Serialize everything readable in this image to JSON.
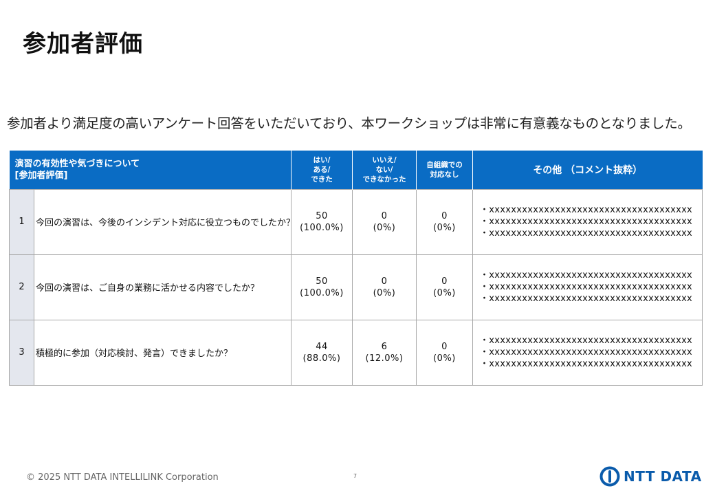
{
  "title": "参加者評価",
  "lead": "参加者より満足度の高いアンケート回答をいただいており、本ワークショップは非常に有意義なものとなりました。",
  "table": {
    "headers": {
      "main_line1": "演習の有効性や気づきについて",
      "main_line2": "[参加者評価]",
      "yes_line1": "はい/",
      "yes_line2": "ある/",
      "yes_line3": "できた",
      "no_line1": "いいえ/",
      "no_line2": "ない/",
      "no_line3": "できなかった",
      "na_line1": "自組織での",
      "na_line2": "対応なし",
      "other": "その他 （コメント抜粋）"
    },
    "rows": [
      {
        "no": "1",
        "question": "今回の演習は、今後のインシデント対応に役立つものでしたか？",
        "yes_count": "50",
        "yes_pct": "(100.0%)",
        "no_count": "0",
        "no_pct": "(0%)",
        "na_count": "0",
        "na_pct": "(0%)",
        "comments": [
          "・xxxxxxxxxxxxxxxxxxxxxxxxxxxxxxxxxxxxx",
          "・xxxxxxxxxxxxxxxxxxxxxxxxxxxxxxxxxxxxx",
          "・xxxxxxxxxxxxxxxxxxxxxxxxxxxxxxxxxxxxx"
        ]
      },
      {
        "no": "2",
        "question": "今回の演習は、ご自身の業務に活かせる内容でしたか？",
        "yes_count": "50",
        "yes_pct": "(100.0%)",
        "no_count": "0",
        "no_pct": "(0%)",
        "na_count": "0",
        "na_pct": "(0%)",
        "comments": [
          "・xxxxxxxxxxxxxxxxxxxxxxxxxxxxxxxxxxxxx",
          "・xxxxxxxxxxxxxxxxxxxxxxxxxxxxxxxxxxxxx",
          "・xxxxxxxxxxxxxxxxxxxxxxxxxxxxxxxxxxxxx"
        ]
      },
      {
        "no": "3",
        "question": "積極的に参加（対応検討、発言）できましたか？",
        "yes_count": "44",
        "yes_pct": "(88.0%)",
        "no_count": "6",
        "no_pct": "(12.0%)",
        "na_count": "0",
        "na_pct": "(0%)",
        "comments": [
          "・xxxxxxxxxxxxxxxxxxxxxxxxxxxxxxxxxxxxx",
          "・xxxxxxxxxxxxxxxxxxxxxxxxxxxxxxxxxxxxx",
          "・xxxxxxxxxxxxxxxxxxxxxxxxxxxxxxxxxxxxx"
        ]
      }
    ]
  },
  "footer": {
    "copyright": "© 2025 NTT DATA INTELLILINK Corporation",
    "page": "7",
    "logo_text": "NTT DATA",
    "brand_color": "#0a5bab"
  },
  "colors": {
    "header_bg": "#0a6cc4",
    "number_cell_bg": "#e4e7ee"
  }
}
